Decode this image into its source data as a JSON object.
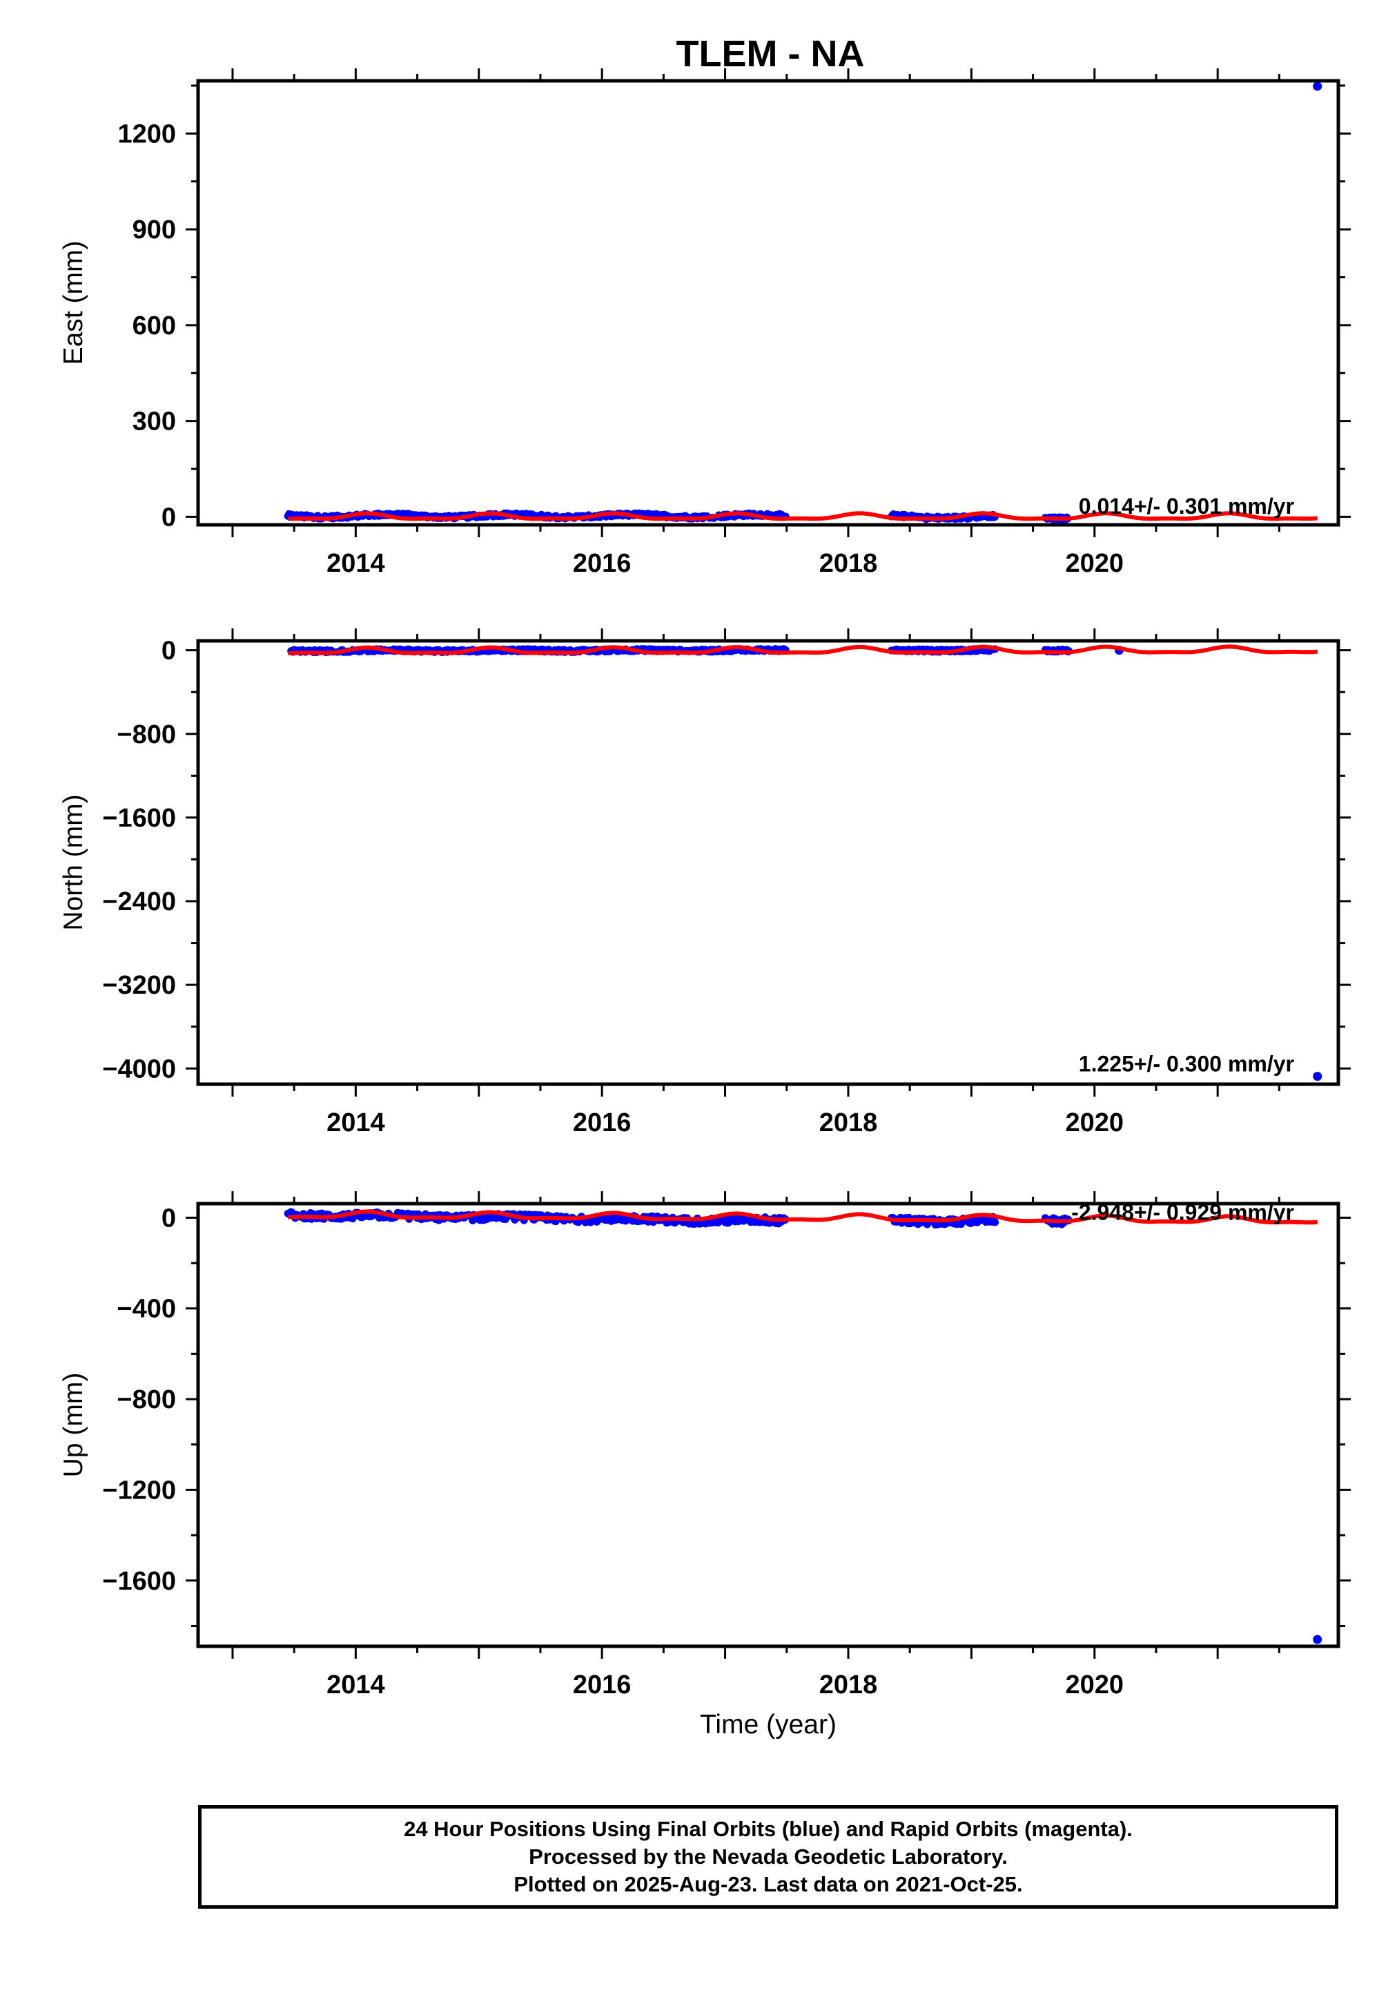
{
  "title": "TLEM - NA",
  "chart_data": [
    {
      "type": "scatter",
      "ylabel": "East (mm)",
      "xlabel": "",
      "xlim": [
        2012.72,
        2021.98
      ],
      "ylim": [
        -25,
        1365
      ],
      "xticks": [
        2014,
        2016,
        2018,
        2020
      ],
      "yticks": [
        0,
        300,
        600,
        900,
        1200
      ],
      "rate_label": "0.014+/- 0.301 mm/yr",
      "segments": [
        [
          2013.45,
          2017.5
        ],
        [
          2018.35,
          2019.2
        ],
        [
          2019.6,
          2019.8
        ]
      ],
      "jitter": 5,
      "drift": [
        [
          2013.45,
          3
        ],
        [
          2017.5,
          3
        ],
        [
          2019.8,
          -2
        ]
      ],
      "outliers": [
        [
          2021.81,
          1348
        ]
      ],
      "fit": {
        "slope": 0.014,
        "offset": 0,
        "amp1": 8,
        "amp2": 3
      }
    },
    {
      "type": "scatter",
      "ylabel": "North (mm)",
      "xlabel": "",
      "xlim": [
        2012.72,
        2021.98
      ],
      "ylim": [
        -4150,
        90
      ],
      "xticks": [
        2014,
        2016,
        2018,
        2020
      ],
      "yticks": [
        0,
        -800,
        -1600,
        -2400,
        -3200,
        -4000
      ],
      "rate_label": "1.225+/- 0.300 mm/yr",
      "segments": [
        [
          2013.45,
          2017.5
        ],
        [
          2018.35,
          2019.2
        ],
        [
          2019.6,
          2019.8
        ]
      ],
      "jitter": 12,
      "drift": [
        [
          2013.45,
          -5
        ],
        [
          2017.5,
          0
        ],
        [
          2019.8,
          0
        ]
      ],
      "outliers": [
        [
          2021.81,
          -4075
        ],
        [
          2020.2,
          0
        ]
      ],
      "fit": {
        "slope": 1.225,
        "offset": -5,
        "amp1": 25,
        "amp2": 10
      }
    },
    {
      "type": "scatter",
      "ylabel": "Up (mm)",
      "xlabel": "Time (year)",
      "xlim": [
        2012.72,
        2021.98
      ],
      "ylim": [
        -1890,
        62
      ],
      "xticks": [
        2014,
        2016,
        2018,
        2020
      ],
      "yticks": [
        0,
        -400,
        -800,
        -1200,
        -1600
      ],
      "rate_label": "-2.948+/- 0.929 mm/yr",
      "segments": [
        [
          2013.45,
          2017.5
        ],
        [
          2018.35,
          2019.2
        ],
        [
          2019.6,
          2019.8
        ]
      ],
      "jitter": 14,
      "drift": [
        [
          2013.45,
          12
        ],
        [
          2017.5,
          -15
        ],
        [
          2019.8,
          -12
        ]
      ],
      "outliers": [
        [
          2021.81,
          -1860
        ]
      ],
      "fit": {
        "slope": -2.948,
        "offset": 0,
        "amp1": 12,
        "amp2": 5
      }
    }
  ],
  "footer": {
    "line1": "24 Hour Positions Using Final Orbits (blue) and Rapid Orbits (magenta).",
    "line2": "Processed by the Nevada Geodetic Laboratory.",
    "line3": "Plotted on 2025-Aug-23. Last data on 2021-Oct-25."
  },
  "colors": {
    "points": "#0000ff",
    "fit": "#ff0000",
    "frame": "#000000"
  }
}
